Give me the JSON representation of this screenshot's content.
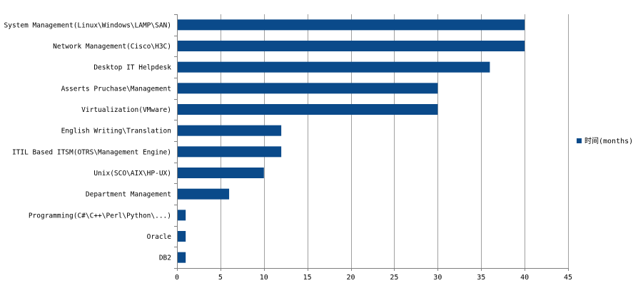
{
  "chart_data": {
    "type": "bar",
    "orientation": "horizontal",
    "categories": [
      "System Management(Linux\\Windows\\LAMP\\SAN)",
      "Network Management(Cisco\\H3C)",
      "Desktop IT Helpdesk",
      "Asserts Pruchase\\Management",
      "Virtualization(VMware)",
      "English Writing\\Translation",
      "ITIL Based ITSM(OTRS\\Management Engine)",
      "Unix(SCO\\AIX\\HP-UX)",
      "Department Management",
      "Programming(C#\\C++\\Perl\\Python\\...)",
      "Oracle",
      "DB2"
    ],
    "series": [
      {
        "name": "时间(months)",
        "values": [
          40,
          40,
          36,
          30,
          30,
          12,
          12,
          10,
          6,
          1,
          1,
          1
        ]
      }
    ],
    "xlim": [
      0,
      45
    ],
    "xticks": [
      "0",
      "5",
      "10",
      "15",
      "20",
      "25",
      "30",
      "35",
      "40",
      "45"
    ],
    "grid": "vertical",
    "legend_position": "right",
    "bar_color": "#0a4a8a",
    "grid_color": "#a0a0a0",
    "axis_color": "#808080"
  }
}
